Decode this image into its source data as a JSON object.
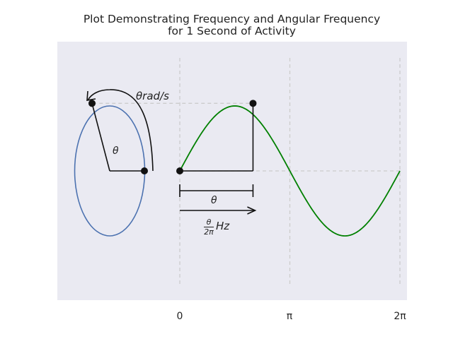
{
  "title_line1": "Plot Demonstrating Frequency and Angular Frequency",
  "title_line2": "for 1 Second of Activity",
  "chart_data": {
    "type": "line",
    "xlim": [
      -3.2,
      6.4
    ],
    "ylim": [
      -2.4,
      2.4
    ],
    "grid": true,
    "xticks": [
      {
        "value": 0,
        "label": "0"
      },
      {
        "value": 3.14159,
        "label": "π"
      },
      {
        "value": 6.28318,
        "label": "2π"
      }
    ],
    "series": [
      {
        "kind": "sine",
        "x_start": 0,
        "x_end": 6.28318,
        "amplitude": 1,
        "color": "#008000"
      },
      {
        "kind": "circle",
        "center": [
          -2,
          0
        ],
        "radius": 1,
        "color": "#4c72b0"
      }
    ],
    "points": [
      {
        "x": -2.48,
        "y": 1.04
      },
      {
        "x": -1.0,
        "y": 0
      },
      {
        "x": 0,
        "y": 0
      },
      {
        "x": 2.09,
        "y": 1.04
      }
    ],
    "annotations": {
      "rotation_label": "θrad/s",
      "angle_label": "θ",
      "interval_label": "θ",
      "freq_numerator": "θ",
      "freq_denominator": "2π",
      "freq_unit": "Hz"
    },
    "colors": {
      "background": "#eaeaf2",
      "grid": "#cccccc",
      "guide": "#111111"
    }
  }
}
